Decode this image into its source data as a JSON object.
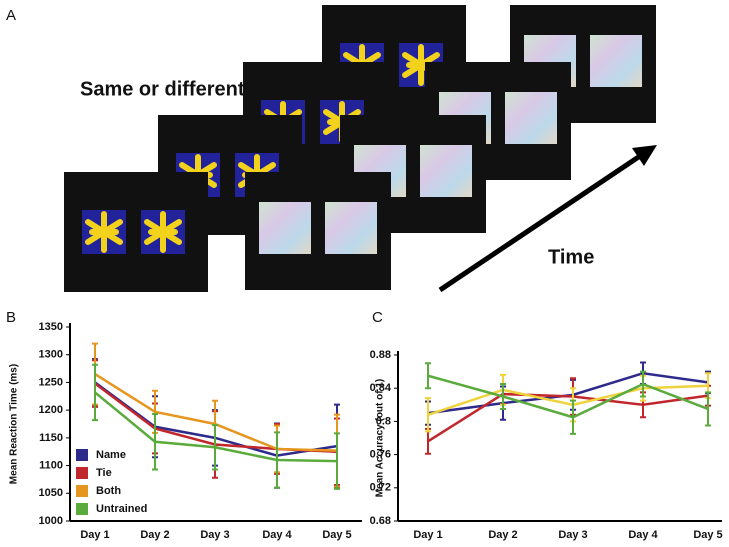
{
  "panel_labels": [
    "A",
    "B",
    "C"
  ],
  "prompt": "Same or different?",
  "time_label": "Time",
  "chart_data": [
    {
      "type": "line",
      "y_label": "Mean Reaction Time (ms)",
      "categories": [
        "Day 1",
        "Day 2",
        "Day 3",
        "Day 4",
        "Day 5"
      ],
      "ylim": [
        1000,
        1350
      ],
      "yticks": [
        1000,
        1050,
        1100,
        1150,
        1200,
        1250,
        1300,
        1350
      ],
      "legend": "lower left",
      "series": [
        {
          "name": "Name",
          "color": "#2e2a8c",
          "values": [
            1250,
            1170,
            1150,
            1118,
            1135
          ],
          "errors": [
            42,
            55,
            50,
            58,
            75
          ]
        },
        {
          "name": "Tie",
          "color": "#c0272d",
          "values": [
            1248,
            1167,
            1138,
            1130,
            1125
          ],
          "errors": [
            42,
            45,
            60,
            45,
            60
          ]
        },
        {
          "name": "Both",
          "color": "#e6961e",
          "values": [
            1265,
            1197,
            1175,
            1130,
            1127
          ],
          "errors": [
            55,
            38,
            42,
            42,
            65
          ]
        },
        {
          "name": "Untrained",
          "color": "#5aaa3c",
          "values": [
            1232,
            1143,
            1133,
            1110,
            1108
          ],
          "errors": [
            50,
            50,
            40,
            50,
            50
          ]
        }
      ]
    },
    {
      "type": "line",
      "y_label": "Mean Accuracy (out of 1)",
      "categories": [
        "Day 1",
        "Day 2",
        "Day 3",
        "Day 4",
        "Day 5"
      ],
      "ylim": [
        0.68,
        0.88
      ],
      "yticks": [
        0.68,
        0.72,
        0.76,
        0.8,
        0.84,
        0.88
      ],
      "series": [
        {
          "color": "#2e2a8c",
          "values": [
            0.81,
            0.822,
            0.832,
            0.858,
            0.847
          ],
          "errors": [
            0.014,
            0.02,
            0.018,
            0.013,
            0.013
          ]
        },
        {
          "color": "#c0272d",
          "values": [
            0.776,
            0.833,
            0.83,
            0.82,
            0.831
          ],
          "errors": [
            0.015,
            0.012,
            0.022,
            0.015,
            0.012
          ]
        },
        {
          "color": "#f0d23c",
          "values": [
            0.808,
            0.838,
            0.82,
            0.84,
            0.843
          ],
          "errors": [
            0.02,
            0.018,
            0.02,
            0.015,
            0.015
          ]
        },
        {
          "color": "#5aaa3c",
          "values": [
            0.855,
            0.83,
            0.805,
            0.845,
            0.815
          ],
          "errors": [
            0.015,
            0.015,
            0.02,
            0.015,
            0.02
          ]
        }
      ]
    }
  ]
}
